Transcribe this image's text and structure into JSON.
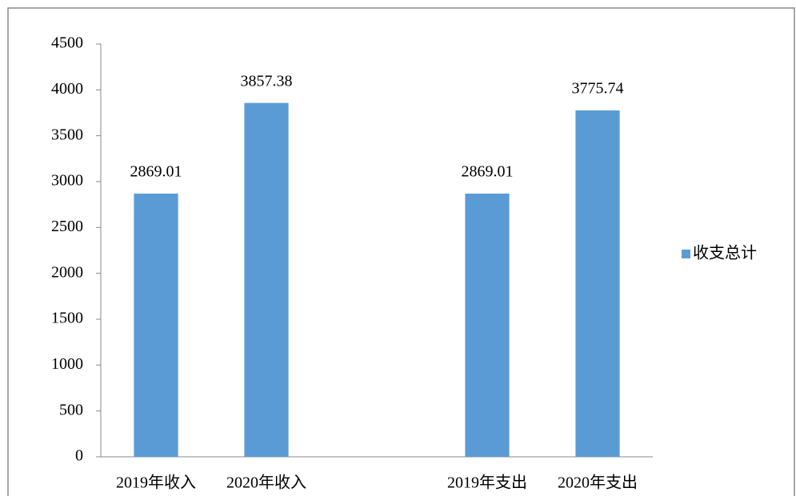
{
  "chart_data": {
    "type": "bar",
    "categories": [
      "2019年收入",
      "2020年收入",
      null,
      "2019年支出",
      "2020年支出"
    ],
    "series": [
      {
        "name": "收支总计",
        "color": "#5b9bd5",
        "values": [
          2869.01,
          3857.38,
          null,
          2869.01,
          3775.74
        ]
      }
    ],
    "ylim": [
      0,
      4500
    ],
    "yticks": [
      0,
      500,
      1000,
      1500,
      2000,
      2500,
      3000,
      3500,
      4000,
      4500
    ],
    "grid": false,
    "legend": "right"
  }
}
